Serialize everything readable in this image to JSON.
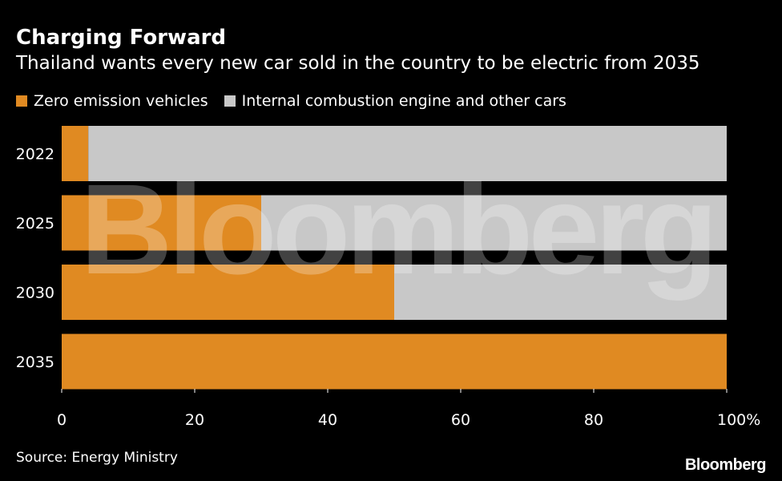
{
  "header": {
    "title": "Charging Forward",
    "subtitle": "Thailand wants every new car sold in the country to be electric from 2035"
  },
  "legend": [
    {
      "label": "Zero emission vehicles",
      "color": "#e08a22"
    },
    {
      "label": "Internal combustion engine and other cars",
      "color": "#c8c8c8"
    }
  ],
  "chart_data": {
    "type": "bar",
    "orientation": "horizontal",
    "stacked": true,
    "categories": [
      "2022",
      "2025",
      "2030",
      "2035"
    ],
    "series": [
      {
        "name": "Zero emission vehicles",
        "values": [
          4,
          30,
          50,
          100
        ],
        "color": "#e08a22"
      },
      {
        "name": "Internal combustion engine and other cars",
        "values": [
          96,
          70,
          50,
          0
        ],
        "color": "#c8c8c8"
      }
    ],
    "xlim": [
      0,
      100
    ],
    "x_ticks": [
      0,
      20,
      40,
      60,
      80,
      100
    ],
    "x_tick_labels": [
      "0",
      "20",
      "40",
      "60",
      "80",
      "100%"
    ],
    "grid": false
  },
  "footer": {
    "source": "Source: Energy Ministry",
    "logo": "Bloomberg"
  },
  "watermark": "Bloomberg"
}
